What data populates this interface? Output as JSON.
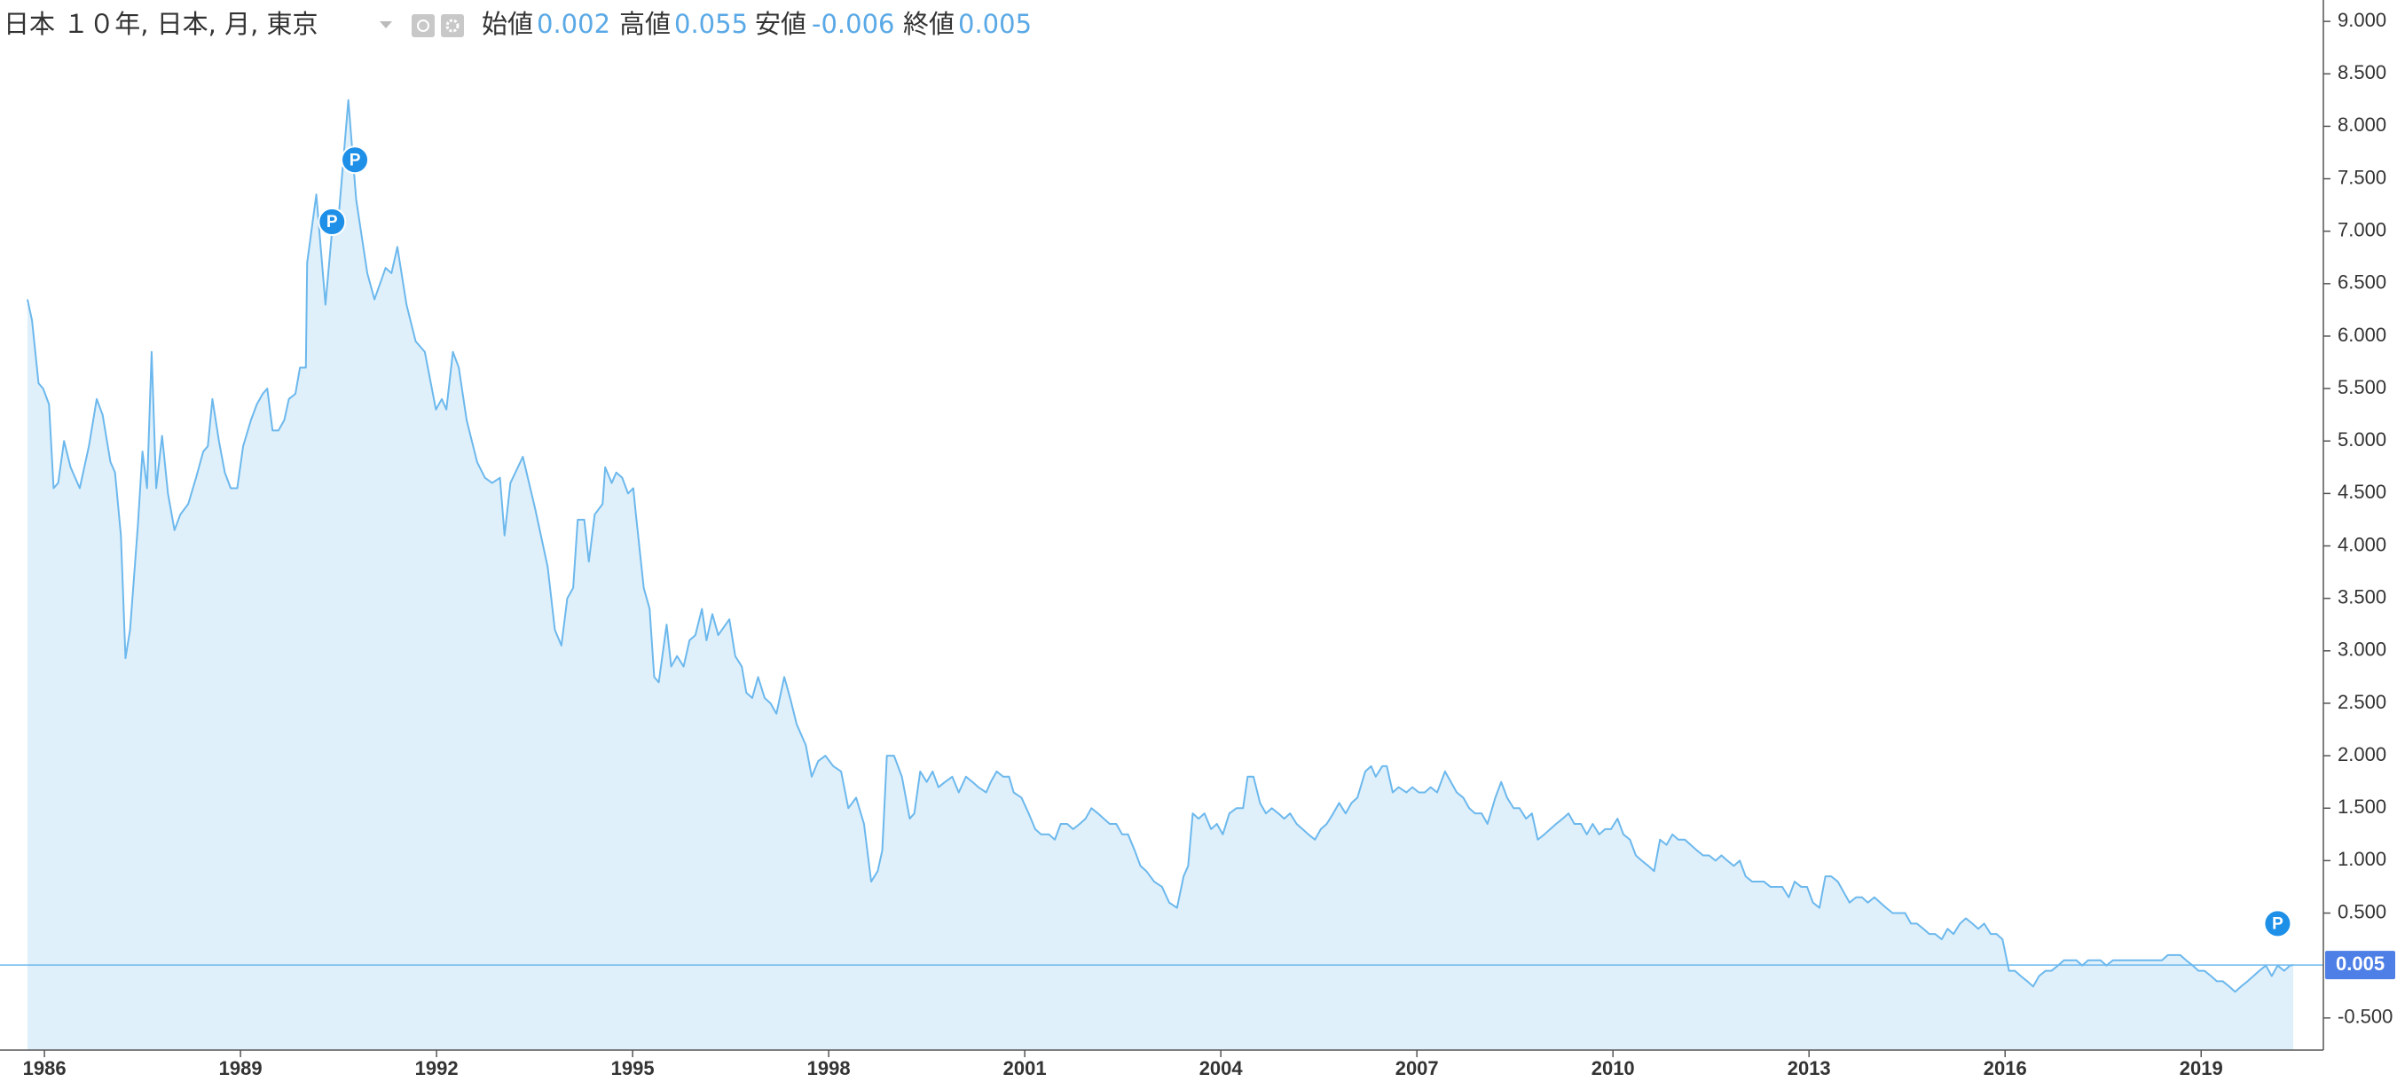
{
  "chart_data": {
    "type": "area",
    "title": "日本 １０年, 日本, 月, 東京",
    "ohlc": [
      {
        "label": "始値",
        "value": 0.002
      },
      {
        "label": "高値",
        "value": 0.055
      },
      {
        "label": "安値",
        "value": -0.006
      },
      {
        "label": "終値",
        "value": 0.005
      }
    ],
    "line_color": "#6cb8ed",
    "fill_color": "#dff0fa",
    "badge_color": "#4d7fe6",
    "marker_color": "#1e90e8",
    "grid": false,
    "xlim": [
      1985.32,
      2020.87
    ],
    "xticks": [
      1986,
      1989,
      1992,
      1995,
      1998,
      2001,
      2004,
      2007,
      2010,
      2013,
      2016,
      2019
    ],
    "ylim": [
      -0.806,
      9.204
    ],
    "yticks": [
      {
        "value": 9,
        "label": "9.000"
      },
      {
        "value": 8.5,
        "label": "8.500"
      },
      {
        "value": 8,
        "label": "8.000"
      },
      {
        "value": 7.5,
        "label": "7.500"
      },
      {
        "value": 7,
        "label": "7.000"
      },
      {
        "value": 6.5,
        "label": "6.500"
      },
      {
        "value": 6,
        "label": "6.000"
      },
      {
        "value": 5.5,
        "label": "5.500"
      },
      {
        "value": 5,
        "label": "5.000"
      },
      {
        "value": 4.5,
        "label": "4.500"
      },
      {
        "value": 4,
        "label": "4.000"
      },
      {
        "value": 3.5,
        "label": "3.500"
      },
      {
        "value": 3,
        "label": "3.000"
      },
      {
        "value": 2.5,
        "label": "2.500"
      },
      {
        "value": 2,
        "label": "2.000"
      },
      {
        "value": 1.5,
        "label": "1.500"
      },
      {
        "value": 1,
        "label": "1.000"
      },
      {
        "value": 0.5,
        "label": "0.500"
      },
      {
        "value": -0.5,
        "label": "-0.500"
      }
    ],
    "markers": [
      {
        "x": 1990.4,
        "y": 7.09,
        "label": "P"
      },
      {
        "x": 1990.75,
        "y": 7.68,
        "label": "P"
      },
      {
        "x": 2020.17,
        "y": 0.4,
        "label": "P"
      }
    ],
    "x": [
      1985.74,
      1985.81,
      1985.91,
      1985.98,
      1986.07,
      1986.14,
      1986.21,
      1986.3,
      1986.4,
      1986.54,
      1986.68,
      1986.8,
      1986.89,
      1987.01,
      1987.08,
      1987.17,
      1987.24,
      1987.31,
      1987.43,
      1987.5,
      1987.57,
      1987.64,
      1987.71,
      1987.8,
      1987.89,
      1987.99,
      1988.08,
      1988.2,
      1988.32,
      1988.43,
      1988.5,
      1988.57,
      1988.67,
      1988.76,
      1988.85,
      1988.95,
      1989.04,
      1989.16,
      1989.25,
      1989.34,
      1989.41,
      1989.49,
      1989.58,
      1989.67,
      1989.74,
      1989.84,
      1989.91,
      1990.0,
      1990.02,
      1990.16,
      1990.3,
      1990.4,
      1990.51,
      1990.65,
      1990.77,
      1990.94,
      1991.05,
      1991.22,
      1991.31,
      1991.4,
      1991.54,
      1991.68,
      1991.82,
      1991.99,
      1992.08,
      1992.15,
      1992.25,
      1992.34,
      1992.46,
      1992.62,
      1992.74,
      1992.85,
      1992.97,
      1993.04,
      1993.13,
      1993.32,
      1993.51,
      1993.7,
      1993.81,
      1993.91,
      1994.0,
      1994.09,
      1994.16,
      1994.26,
      1994.33,
      1994.42,
      1994.54,
      1994.58,
      1994.68,
      1994.75,
      1994.84,
      1994.93,
      1995.01,
      1995.05,
      1995.17,
      1995.26,
      1995.33,
      1995.4,
      1995.52,
      1995.59,
      1995.68,
      1995.78,
      1995.87,
      1995.96,
      1996.06,
      1996.13,
      1996.22,
      1996.31,
      1996.48,
      1996.57,
      1996.67,
      1996.74,
      1996.83,
      1996.92,
      1997.02,
      1997.11,
      1997.2,
      1997.32,
      1997.41,
      1997.51,
      1997.65,
      1997.74,
      1997.84,
      1997.95,
      1998.07,
      1998.19,
      1998.3,
      1998.42,
      1998.54,
      1998.65,
      1998.75,
      1998.82,
      1998.89,
      1999.0,
      1999.12,
      1999.24,
      1999.31,
      1999.4,
      1999.5,
      1999.59,
      1999.68,
      1999.78,
      1999.89,
      1999.99,
      2000.1,
      2000.2,
      2000.29,
      2000.41,
      2000.48,
      2000.57,
      2000.67,
      2000.76,
      2000.83,
      2000.95,
      2001.06,
      2001.16,
      2001.25,
      2001.37,
      2001.46,
      2001.55,
      2001.65,
      2001.74,
      2001.84,
      2001.93,
      2002.02,
      2002.12,
      2002.21,
      2002.3,
      2002.4,
      2002.49,
      2002.58,
      2002.68,
      2002.77,
      2002.86,
      2002.98,
      2003.1,
      2003.21,
      2003.33,
      2003.43,
      2003.5,
      2003.57,
      2003.66,
      2003.75,
      2003.85,
      2003.94,
      2004.03,
      2004.13,
      2004.24,
      2004.34,
      2004.41,
      2004.5,
      2004.6,
      2004.69,
      2004.78,
      2004.88,
      2004.97,
      2005.06,
      2005.16,
      2005.25,
      2005.34,
      2005.44,
      2005.53,
      2005.62,
      2005.72,
      2005.81,
      2005.91,
      2006.0,
      2006.09,
      2006.21,
      2006.3,
      2006.37,
      2006.47,
      2006.54,
      2006.63,
      2006.72,
      2006.84,
      2006.93,
      2007.03,
      2007.12,
      2007.21,
      2007.31,
      2007.43,
      2007.52,
      2007.61,
      2007.71,
      2007.8,
      2007.89,
      2007.99,
      2008.08,
      2008.2,
      2008.29,
      2008.38,
      2008.48,
      2008.57,
      2008.67,
      2008.76,
      2008.85,
      2008.95,
      2009.04,
      2009.13,
      2009.23,
      2009.32,
      2009.41,
      2009.51,
      2009.6,
      2009.69,
      2009.79,
      2009.88,
      2009.97,
      2010.07,
      2010.16,
      2010.26,
      2010.35,
      2010.44,
      2010.54,
      2010.63,
      2010.72,
      2010.82,
      2010.91,
      2011.0,
      2011.1,
      2011.19,
      2011.28,
      2011.38,
      2011.47,
      2011.57,
      2011.66,
      2011.75,
      2011.85,
      2011.94,
      2012.03,
      2012.13,
      2012.22,
      2012.31,
      2012.41,
      2012.5,
      2012.59,
      2012.69,
      2012.78,
      2012.88,
      2012.97,
      2013.06,
      2013.16,
      2013.25,
      2013.34,
      2013.44,
      2013.53,
      2013.62,
      2013.72,
      2013.81,
      2013.9,
      2014.0,
      2014.09,
      2014.18,
      2014.28,
      2014.37,
      2014.47,
      2014.56,
      2014.65,
      2014.75,
      2014.84,
      2014.93,
      2015.03,
      2015.12,
      2015.21,
      2015.31,
      2015.4,
      2015.5,
      2015.59,
      2015.68,
      2015.78,
      2015.87,
      2015.96,
      2016.06,
      2016.15,
      2016.24,
      2016.34,
      2016.43,
      2016.52,
      2016.62,
      2016.71,
      2016.81,
      2016.9,
      2016.99,
      2017.09,
      2017.18,
      2017.27,
      2017.37,
      2017.46,
      2017.55,
      2017.65,
      2017.74,
      2017.84,
      2017.93,
      2018.02,
      2018.12,
      2018.21,
      2018.3,
      2018.4,
      2018.49,
      2018.58,
      2018.68,
      2018.77,
      2018.87,
      2018.96,
      2019.05,
      2019.15,
      2019.24,
      2019.33,
      2019.43,
      2019.52,
      2019.61,
      2019.71,
      2019.8,
      2019.89,
      2019.99,
      2020.08,
      2020.17,
      2020.27,
      2020.36,
      2020.41
    ],
    "values": [
      6.35,
      6.15,
      5.55,
      5.5,
      5.35,
      4.55,
      4.6,
      5.0,
      4.75,
      4.55,
      4.95,
      5.4,
      5.25,
      4.8,
      4.7,
      4.1,
      2.93,
      3.2,
      4.2,
      4.9,
      4.55,
      5.85,
      4.55,
      5.05,
      4.5,
      4.15,
      4.3,
      4.4,
      4.65,
      4.9,
      4.95,
      5.4,
      5.0,
      4.7,
      4.55,
      4.55,
      4.95,
      5.2,
      5.35,
      5.45,
      5.5,
      5.1,
      5.1,
      5.2,
      5.4,
      5.45,
      5.7,
      5.7,
      6.7,
      7.35,
      6.3,
      7.0,
      7.2,
      8.25,
      7.3,
      6.6,
      6.35,
      6.65,
      6.6,
      6.85,
      6.3,
      5.95,
      5.85,
      5.3,
      5.4,
      5.3,
      5.85,
      5.7,
      5.2,
      4.8,
      4.65,
      4.6,
      4.65,
      4.1,
      4.6,
      4.85,
      4.35,
      3.8,
      3.2,
      3.05,
      3.5,
      3.6,
      4.25,
      4.25,
      3.85,
      4.3,
      4.4,
      4.75,
      4.6,
      4.7,
      4.65,
      4.5,
      4.55,
      4.3,
      3.6,
      3.4,
      2.75,
      2.7,
      3.25,
      2.85,
      2.95,
      2.85,
      3.1,
      3.15,
      3.4,
      3.1,
      3.35,
      3.15,
      3.3,
      2.95,
      2.85,
      2.6,
      2.55,
      2.75,
      2.55,
      2.5,
      2.4,
      2.75,
      2.55,
      2.3,
      2.1,
      1.8,
      1.95,
      2.0,
      1.9,
      1.85,
      1.5,
      1.6,
      1.35,
      0.8,
      0.9,
      1.1,
      2.0,
      2.0,
      1.8,
      1.4,
      1.45,
      1.85,
      1.75,
      1.85,
      1.7,
      1.75,
      1.8,
      1.65,
      1.8,
      1.75,
      1.7,
      1.65,
      1.75,
      1.85,
      1.8,
      1.8,
      1.65,
      1.6,
      1.45,
      1.3,
      1.25,
      1.25,
      1.2,
      1.35,
      1.35,
      1.3,
      1.35,
      1.4,
      1.5,
      1.45,
      1.4,
      1.35,
      1.35,
      1.25,
      1.25,
      1.1,
      0.95,
      0.9,
      0.8,
      0.75,
      0.6,
      0.55,
      0.85,
      0.95,
      1.45,
      1.4,
      1.45,
      1.3,
      1.35,
      1.25,
      1.45,
      1.5,
      1.5,
      1.8,
      1.8,
      1.55,
      1.45,
      1.5,
      1.45,
      1.4,
      1.45,
      1.35,
      1.3,
      1.25,
      1.2,
      1.3,
      1.35,
      1.45,
      1.55,
      1.45,
      1.55,
      1.6,
      1.85,
      1.9,
      1.8,
      1.9,
      1.9,
      1.65,
      1.7,
      1.65,
      1.7,
      1.65,
      1.65,
      1.7,
      1.65,
      1.85,
      1.75,
      1.65,
      1.6,
      1.5,
      1.45,
      1.45,
      1.35,
      1.6,
      1.75,
      1.6,
      1.5,
      1.5,
      1.4,
      1.45,
      1.2,
      1.25,
      1.3,
      1.35,
      1.4,
      1.45,
      1.35,
      1.35,
      1.25,
      1.35,
      1.25,
      1.3,
      1.3,
      1.4,
      1.25,
      1.2,
      1.05,
      1.0,
      0.95,
      0.9,
      1.2,
      1.15,
      1.25,
      1.2,
      1.2,
      1.15,
      1.1,
      1.05,
      1.05,
      1.0,
      1.05,
      1.0,
      0.95,
      1.0,
      0.85,
      0.8,
      0.8,
      0.8,
      0.75,
      0.75,
      0.75,
      0.65,
      0.8,
      0.75,
      0.75,
      0.6,
      0.55,
      0.85,
      0.85,
      0.8,
      0.7,
      0.6,
      0.65,
      0.65,
      0.6,
      0.65,
      0.6,
      0.55,
      0.5,
      0.5,
      0.5,
      0.4,
      0.4,
      0.35,
      0.3,
      0.3,
      0.25,
      0.35,
      0.3,
      0.4,
      0.45,
      0.4,
      0.35,
      0.4,
      0.3,
      0.3,
      0.25,
      -0.05,
      -0.05,
      -0.1,
      -0.15,
      -0.2,
      -0.1,
      -0.05,
      -0.05,
      0.0,
      0.05,
      0.05,
      0.05,
      0.0,
      0.05,
      0.05,
      0.05,
      0.0,
      0.05,
      0.05,
      0.05,
      0.05,
      0.05,
      0.05,
      0.05,
      0.05,
      0.05,
      0.1,
      0.1,
      0.1,
      0.05,
      0.0,
      -0.05,
      -0.05,
      -0.1,
      -0.15,
      -0.15,
      -0.2,
      -0.25,
      -0.2,
      -0.15,
      -0.1,
      -0.05,
      0.0,
      -0.1,
      0.0,
      -0.05,
      0.0,
      0.005
    ]
  }
}
